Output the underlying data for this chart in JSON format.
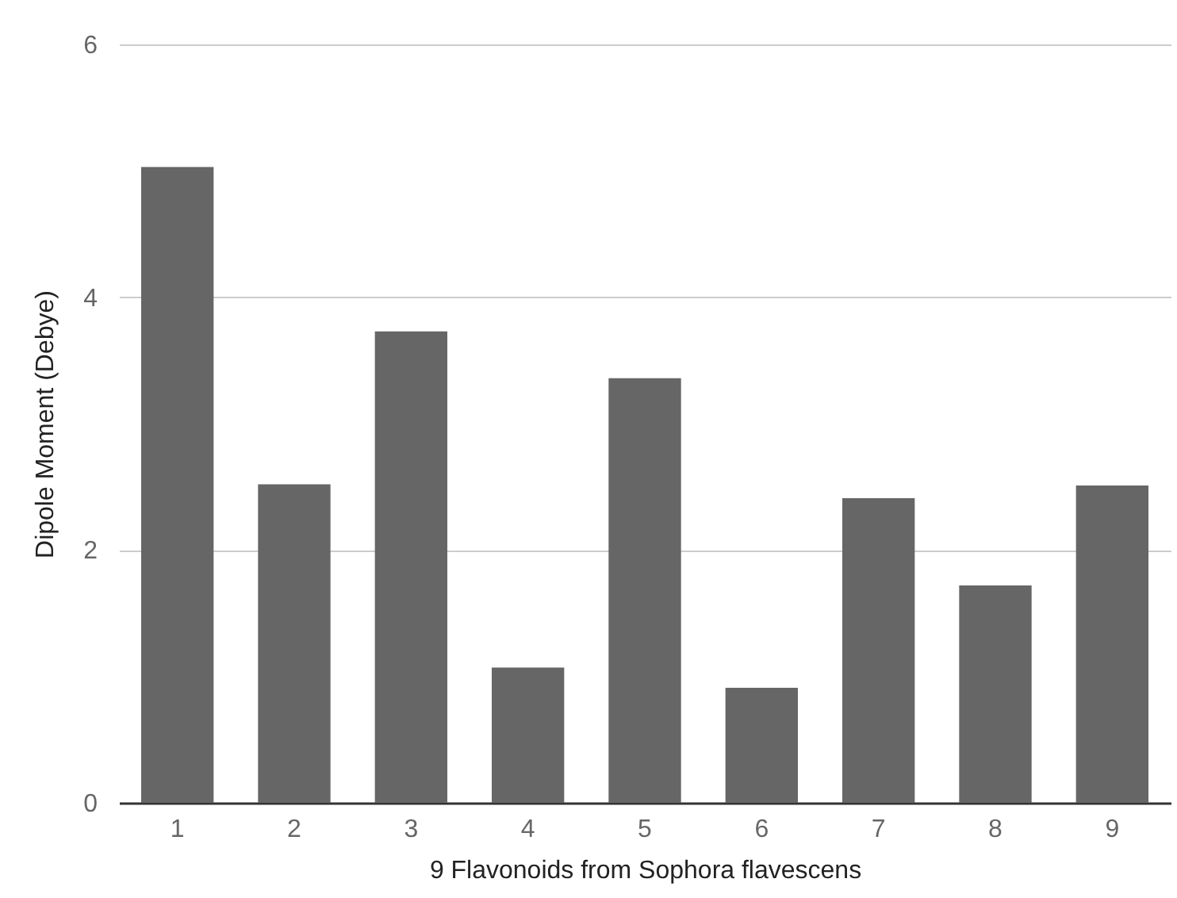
{
  "chart_data": {
    "type": "bar",
    "xlabel": "9 Flavonoids from Sophora flavescens",
    "ylabel": "Dipole Moment (Debye)",
    "categories": [
      "1",
      "2",
      "3",
      "4",
      "5",
      "6",
      "7",
      "8",
      "9"
    ],
    "values": [
      5.03,
      2.52,
      3.73,
      1.07,
      3.36,
      0.91,
      2.41,
      1.72,
      2.51
    ],
    "color": "#666666",
    "ylim": [
      0,
      6
    ],
    "yticks": [
      0,
      2,
      4,
      6
    ],
    "grid": "y"
  }
}
